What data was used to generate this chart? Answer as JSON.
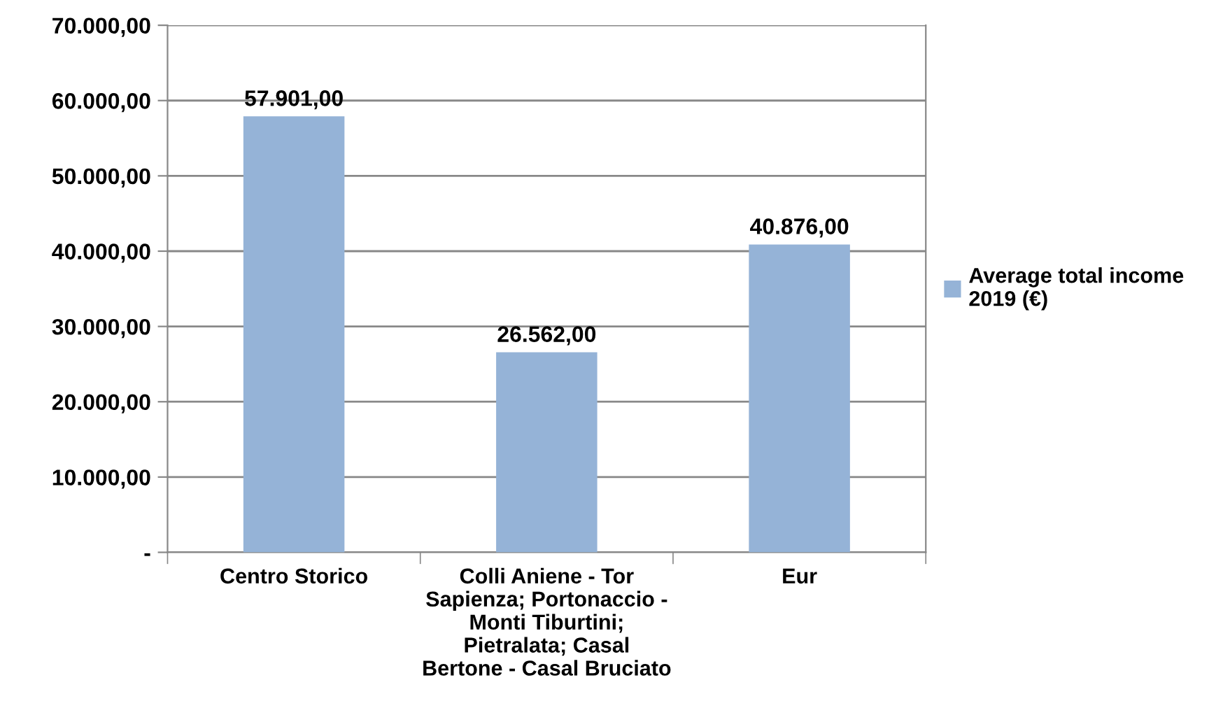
{
  "chart_data": {
    "type": "bar",
    "categories": [
      "Centro Storico",
      "Colli Aniene - Tor Sapienza; Portonaccio - Monti Tiburtini; Pietralata; Casal Bertone - Casal Bruciato",
      "Eur"
    ],
    "series": [
      {
        "name": "Average total income 2019 (€)",
        "color": "#95b3d7",
        "values": [
          57901,
          26562,
          40876
        ],
        "value_labels": [
          "57.901,00",
          "26.562,00",
          "40.876,00"
        ]
      }
    ],
    "ylim": [
      0,
      70000
    ],
    "yticks": [
      {
        "value": 0,
        "label": "-"
      },
      {
        "value": 10000,
        "label": "10.000,00"
      },
      {
        "value": 20000,
        "label": "20.000,00"
      },
      {
        "value": 30000,
        "label": "30.000,00"
      },
      {
        "value": 40000,
        "label": "40.000,00"
      },
      {
        "value": 50000,
        "label": "50.000,00"
      },
      {
        "value": 60000,
        "label": "60.000,00"
      },
      {
        "value": 70000,
        "label": "70.000,00"
      }
    ],
    "grid": "y",
    "legend": "right"
  }
}
